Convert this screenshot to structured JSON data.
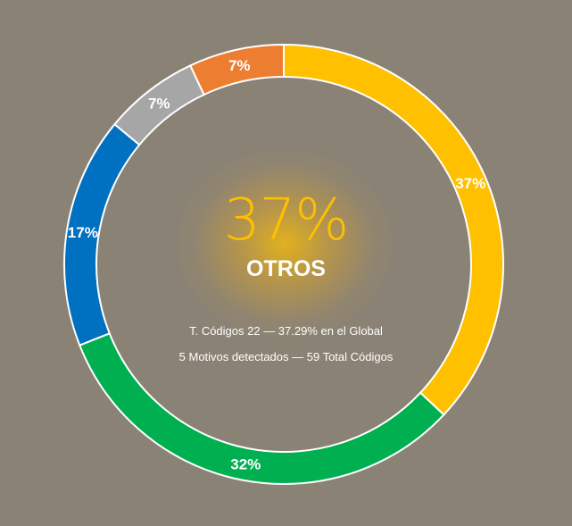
{
  "chart_data": {
    "type": "pie",
    "style": "donut",
    "categories": [
      "",
      "",
      "",
      "",
      ""
    ],
    "values": [
      37,
      32,
      17,
      7,
      7
    ],
    "slice_labels": [
      "37%",
      "32%",
      "17%",
      "7%",
      "7%"
    ],
    "colors": [
      "#ffc000",
      "#00b050",
      "#0070c0",
      "#a6a6a6",
      "#ed7d31"
    ],
    "start_angle_deg": 0,
    "direction": "clockwise"
  },
  "center": {
    "percent": "37%",
    "label": "OTROS",
    "line1": "T. Códigos 22 — 37.29% en el Global",
    "line2": "5 Motivos detectados — 59 Total Códigos"
  },
  "colors": {
    "background": "#8a8274",
    "accent": "#ffc000",
    "border": "#ffffff"
  }
}
